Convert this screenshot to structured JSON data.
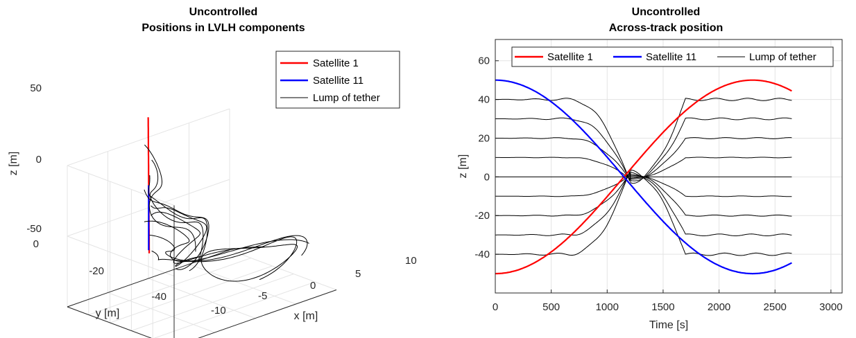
{
  "chart_data": [
    {
      "type": "line-3d",
      "title": "Uncontrolled",
      "subtitle": "Positions in LVLH components",
      "xlabel": "x  [m]",
      "ylabel": "y  [m]",
      "zlabel": "z  [m]",
      "x_ticks": [
        "-10",
        "-5",
        "0",
        "5",
        "10"
      ],
      "y_ticks": [
        "0",
        "-20",
        "-40"
      ],
      "z_ticks": [
        "50",
        "0",
        "-50"
      ],
      "xlim": [
        -10,
        10
      ],
      "ylim": [
        -50,
        0
      ],
      "zlim": [
        -50,
        50
      ],
      "grid": true,
      "legend_position": "top-right",
      "legend": [
        {
          "label": "Satellite 1",
          "color": "#ff0000"
        },
        {
          "label": "Satellite 11",
          "color": "#0000ff"
        },
        {
          "label": "Lump of tether",
          "color": "#000000"
        }
      ]
    },
    {
      "type": "line",
      "title": "Uncontrolled",
      "subtitle": "Across-track position",
      "xlabel": "Time [s]",
      "ylabel": "z  [m]",
      "xlim": [
        0,
        3100
      ],
      "ylim": [
        -60,
        71
      ],
      "x_ticks": [
        0,
        500,
        1000,
        1500,
        2000,
        2500,
        3000
      ],
      "y_ticks": [
        60,
        40,
        20,
        0,
        -20,
        -40
      ],
      "grid": true,
      "legend_position": "top",
      "t_end": 2650,
      "series": [
        {
          "name": "Satellite 1",
          "color": "#ff0000",
          "width": 2.2,
          "kind": "sat",
          "sign": -1
        },
        {
          "name": "Satellite 11",
          "color": "#0000ff",
          "width": 2.2,
          "kind": "sat",
          "sign": 1
        },
        {
          "name": "Lump of tether",
          "color": "#000000",
          "width": 1,
          "kind": "lump",
          "start_values": [
            40,
            30,
            20,
            10,
            0,
            -10,
            -20,
            -30,
            -40
          ]
        }
      ]
    }
  ]
}
